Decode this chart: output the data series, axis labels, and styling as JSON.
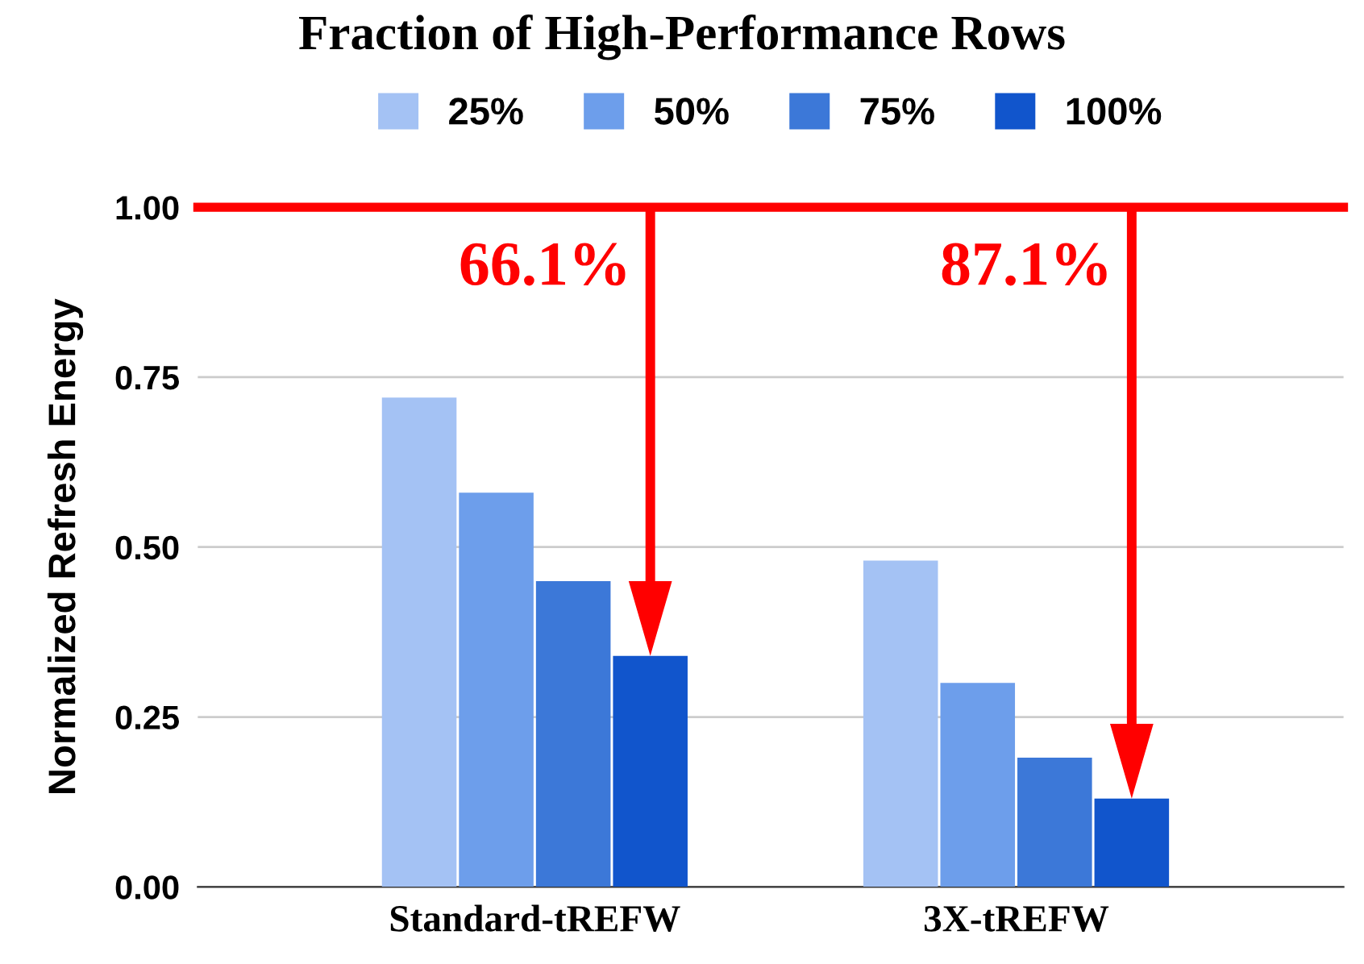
{
  "chart_data": {
    "type": "bar",
    "title": "Fraction of High-Performance Rows",
    "ylabel": "Normalized Refresh Energy",
    "categories": [
      "Standard-tREFW",
      "3X-tREFW"
    ],
    "series": [
      {
        "name": "25%",
        "color": "#a4c2f4",
        "values": [
          0.72,
          0.48
        ]
      },
      {
        "name": "50%",
        "color": "#6d9eeb",
        "values": [
          0.58,
          0.3
        ]
      },
      {
        "name": "75%",
        "color": "#3c78d8",
        "values": [
          0.45,
          0.19
        ]
      },
      {
        "name": "100%",
        "color": "#1155cc",
        "values": [
          0.34,
          0.13
        ]
      }
    ],
    "ylim": [
      0,
      1.0
    ],
    "yticks": [
      {
        "value": 0,
        "label": "0.00"
      },
      {
        "value": 0.25,
        "label": "0.25"
      },
      {
        "value": 0.5,
        "label": "0.50"
      },
      {
        "value": 0.75,
        "label": "0.75"
      },
      {
        "value": 1.0,
        "label": "1.00"
      }
    ],
    "grid": "y",
    "legend": "top",
    "ref_lines": [
      {
        "axis": "y",
        "value": 1.0,
        "color": "#ff0000"
      }
    ],
    "annotations": [
      "66.1%",
      "87.1%"
    ]
  }
}
